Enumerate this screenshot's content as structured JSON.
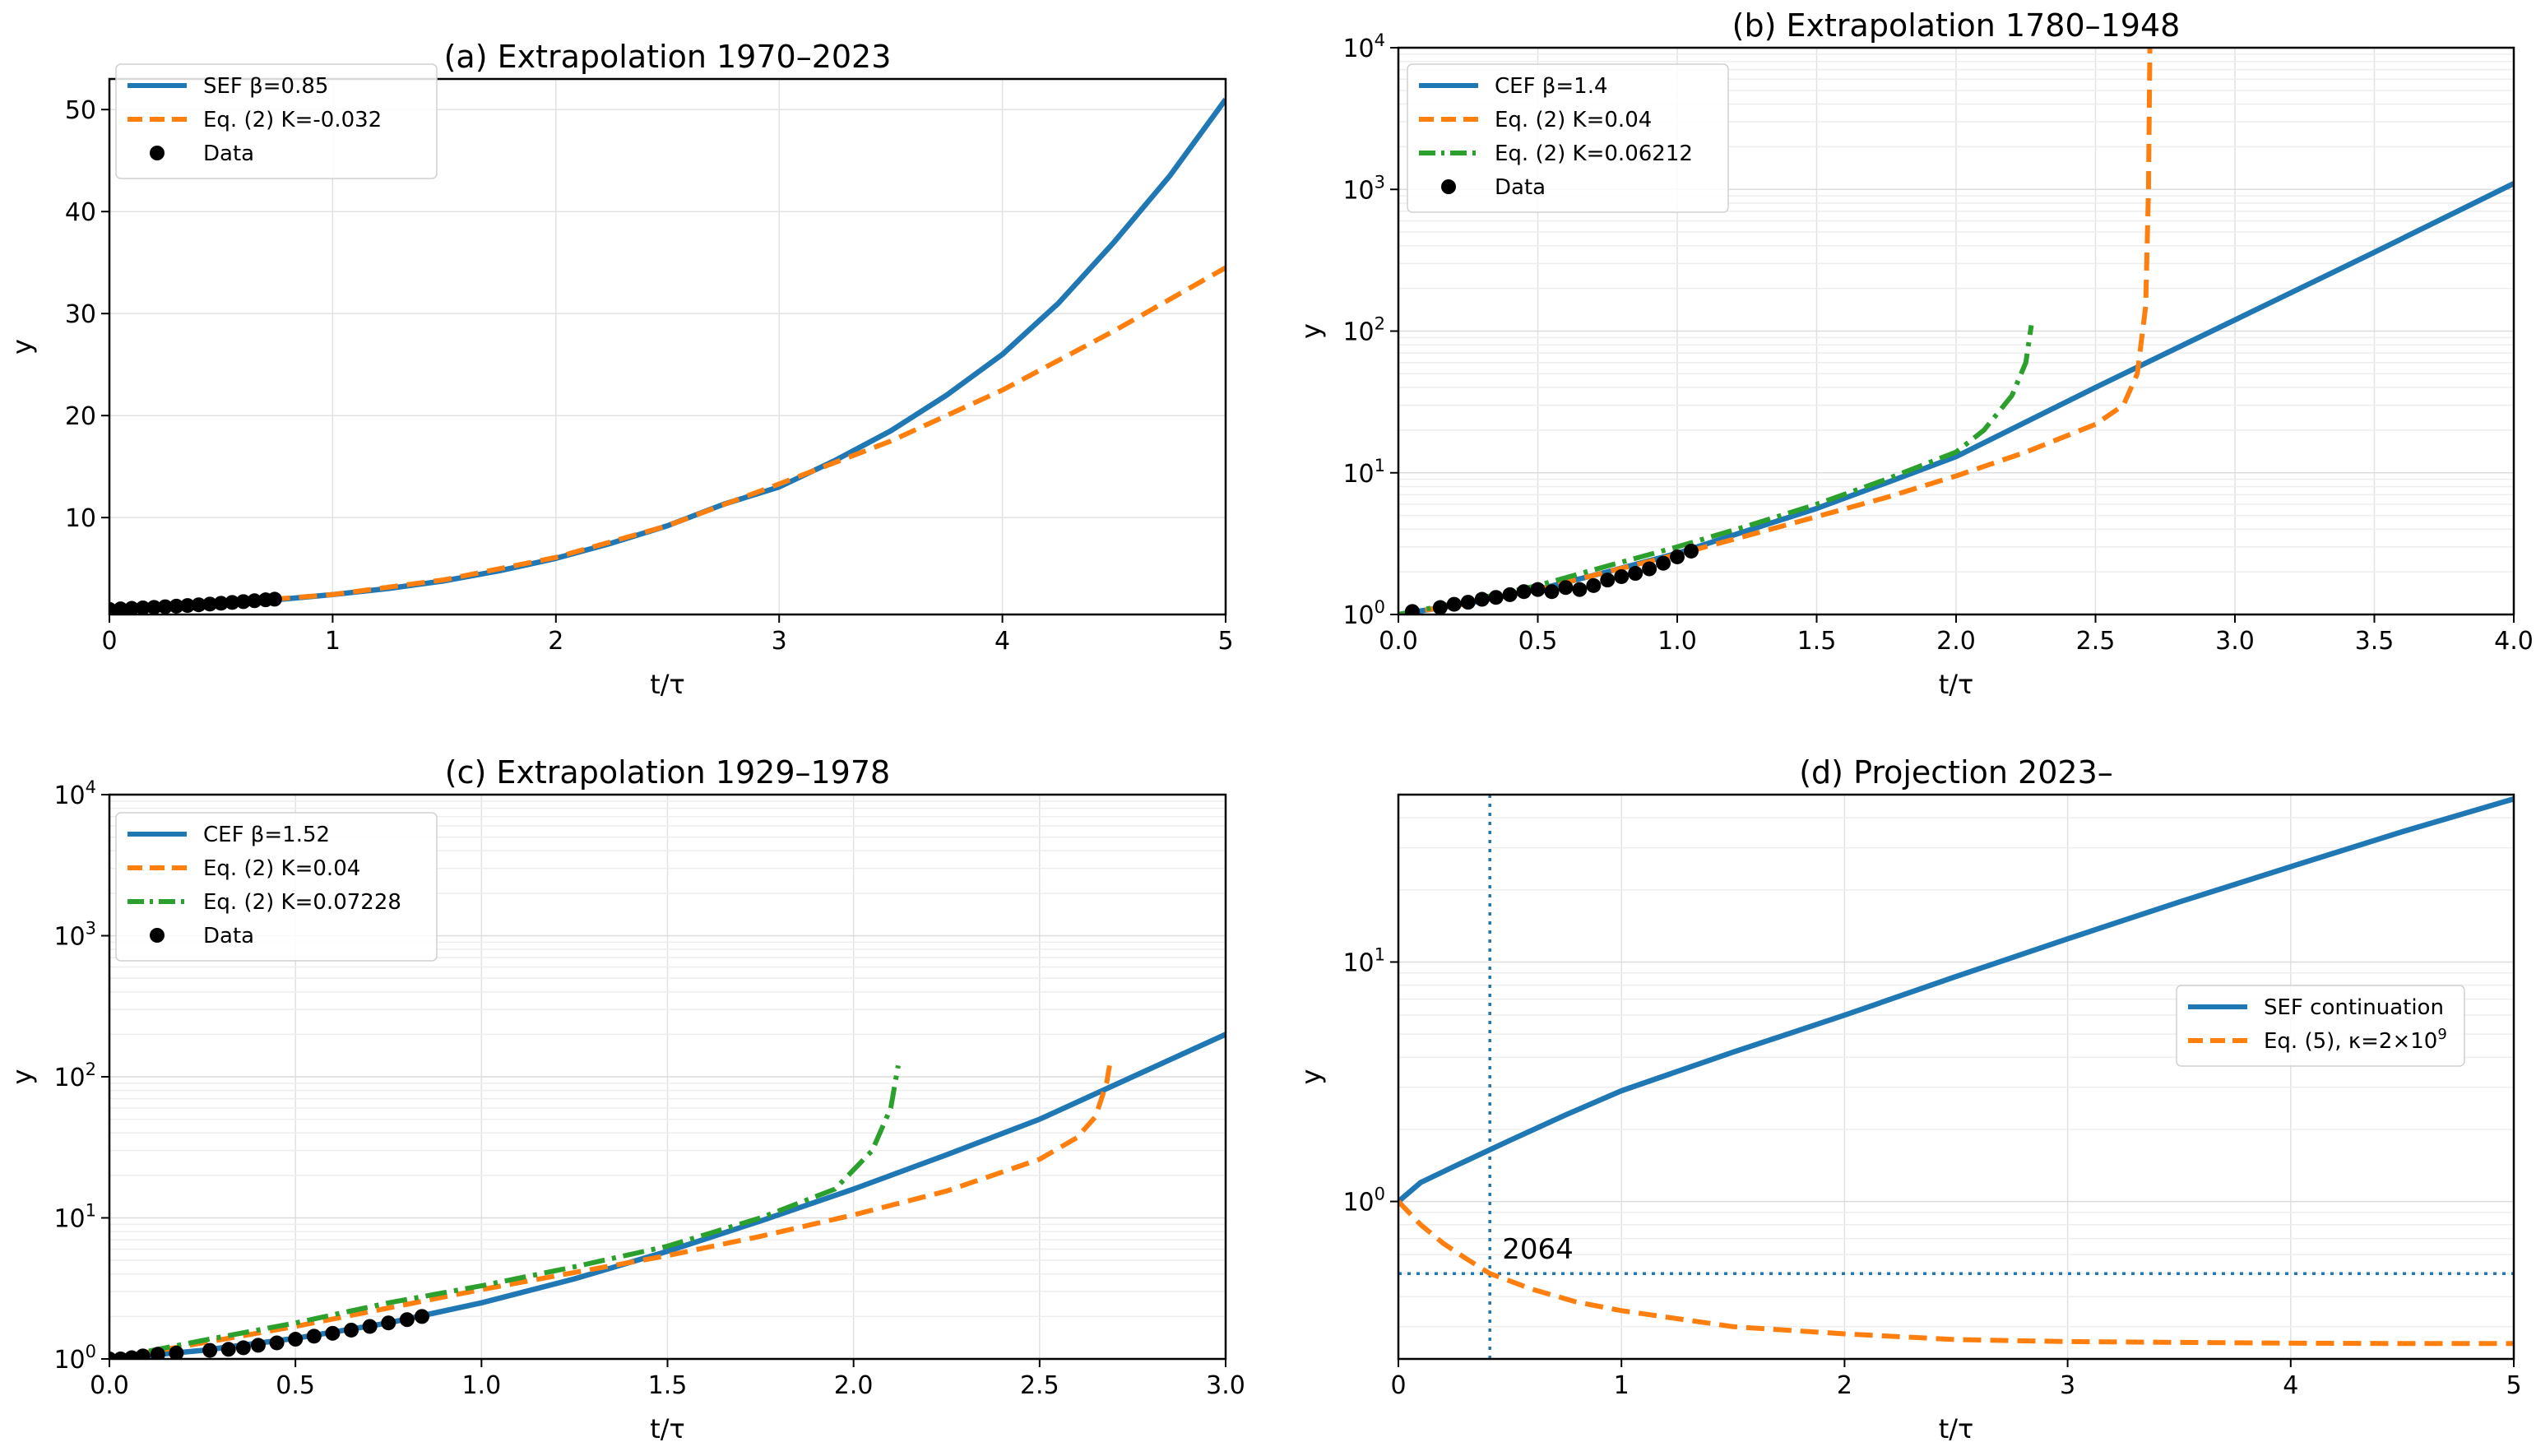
{
  "chart_data": [
    {
      "id": "a",
      "type": "line",
      "title": "(a) Extrapolation 1970–2023",
      "xlabel": "t/τ",
      "ylabel": "y",
      "yscale": "linear",
      "xlim": [
        0,
        5
      ],
      "ylim": [
        0.5,
        53
      ],
      "xticks": [
        0,
        1,
        2,
        3,
        4,
        5
      ],
      "xticklabels": [
        "0",
        "1",
        "2",
        "3",
        "4",
        "5"
      ],
      "yticks": [
        10,
        20,
        30,
        40,
        50
      ],
      "yticklabels": [
        "10",
        "20",
        "30",
        "40",
        "50"
      ],
      "grid": true,
      "legend_position": "upper-left",
      "series": [
        {
          "name": "SEF β=0.85",
          "style": "solid",
          "color": "#1f77b4",
          "x": [
            0,
            0.25,
            0.5,
            0.75,
            1,
            1.25,
            1.5,
            1.75,
            2,
            2.25,
            2.5,
            2.75,
            3,
            3.25,
            3.5,
            3.75,
            4,
            4.25,
            4.5,
            4.75,
            5
          ],
          "y": [
            1.0,
            1.25,
            1.55,
            1.95,
            2.45,
            3.05,
            3.8,
            4.8,
            6.0,
            7.5,
            9.2,
            11.3,
            13.0,
            15.6,
            18.5,
            22.0,
            26.0,
            31.0,
            37.0,
            43.5,
            51.0
          ]
        },
        {
          "name": "Eq. (2)  K=-0.032",
          "style": "dashed",
          "color": "#ff7f0e",
          "x": [
            0,
            0.5,
            1,
            1.5,
            2,
            2.5,
            3,
            3.5,
            4,
            4.5,
            5
          ],
          "y": [
            1.0,
            1.6,
            2.45,
            3.9,
            6.1,
            9.2,
            13.3,
            17.5,
            22.5,
            28.3,
            34.5
          ]
        },
        {
          "name": "Data",
          "style": "markers",
          "color": "#000000",
          "x": [
            0.0,
            0.05,
            0.1,
            0.15,
            0.2,
            0.25,
            0.3,
            0.35,
            0.4,
            0.45,
            0.5,
            0.55,
            0.6,
            0.65,
            0.7,
            0.74
          ],
          "y": [
            1.0,
            1.05,
            1.1,
            1.15,
            1.2,
            1.26,
            1.32,
            1.38,
            1.45,
            1.52,
            1.6,
            1.68,
            1.76,
            1.85,
            1.94,
            2.0
          ]
        }
      ]
    },
    {
      "id": "b",
      "type": "line",
      "title": "(b) Extrapolation 1780–1948",
      "xlabel": "t/τ",
      "ylabel": "y",
      "yscale": "log",
      "xlim": [
        0,
        4
      ],
      "ylim": [
        1,
        10000
      ],
      "xticks": [
        0,
        0.5,
        1,
        1.5,
        2,
        2.5,
        3,
        3.5,
        4
      ],
      "xticklabels": [
        "0.0",
        "0.5",
        "1.0",
        "1.5",
        "2.0",
        "2.5",
        "3.0",
        "3.5",
        "4.0"
      ],
      "yticks": [
        1,
        10,
        100,
        1000,
        10000
      ],
      "yticklabels": [
        [
          "10",
          "0"
        ],
        [
          "10",
          "1"
        ],
        [
          "10",
          "2"
        ],
        [
          "10",
          "3"
        ],
        [
          "10",
          "4"
        ]
      ],
      "grid": true,
      "legend_position": "upper-left",
      "series": [
        {
          "name": "CEF β=1.4",
          "style": "solid",
          "color": "#1f77b4",
          "x": [
            0,
            0.25,
            0.5,
            0.75,
            1,
            1.25,
            1.5,
            1.75,
            2,
            2.5,
            3,
            3.5,
            4
          ],
          "y": [
            1.0,
            1.2,
            1.5,
            2.0,
            2.7,
            3.9,
            5.6,
            8.5,
            13.0,
            40,
            120,
            360,
            1100
          ]
        },
        {
          "name": "Eq. (2) K=0.04",
          "style": "dashed",
          "color": "#ff7f0e",
          "x": [
            0,
            0.25,
            0.5,
            0.75,
            1,
            1.25,
            1.5,
            1.75,
            2,
            2.25,
            2.5,
            2.6,
            2.65,
            2.68,
            2.69,
            2.695
          ],
          "y": [
            1.0,
            1.2,
            1.5,
            2.0,
            2.65,
            3.6,
            4.9,
            6.7,
            9.5,
            14,
            22,
            30,
            50,
            150,
            1000,
            10000
          ]
        },
        {
          "name": "Eq. (2) K=0.06212",
          "style": "dashdot",
          "color": "#2ca02c",
          "x": [
            0,
            0.25,
            0.5,
            0.75,
            1,
            1.25,
            1.5,
            1.75,
            2,
            2.1,
            2.2,
            2.25,
            2.27
          ],
          "y": [
            1.0,
            1.25,
            1.6,
            2.2,
            3.0,
            4.2,
            6.0,
            9.0,
            14,
            20,
            35,
            60,
            110
          ]
        },
        {
          "name": "Data",
          "style": "markers",
          "color": "#000000",
          "x": [
            0.05,
            0.15,
            0.2,
            0.25,
            0.3,
            0.35,
            0.4,
            0.45,
            0.5,
            0.55,
            0.6,
            0.65,
            0.7,
            0.75,
            0.8,
            0.85,
            0.9,
            0.95,
            1.0,
            1.05
          ],
          "y": [
            1.05,
            1.12,
            1.18,
            1.22,
            1.28,
            1.32,
            1.38,
            1.45,
            1.5,
            1.45,
            1.55,
            1.5,
            1.6,
            1.75,
            1.85,
            1.95,
            2.1,
            2.3,
            2.55,
            2.8
          ]
        }
      ]
    },
    {
      "id": "c",
      "type": "line",
      "title": "(c) Extrapolation 1929–1978",
      "xlabel": "t/τ",
      "ylabel": "y",
      "yscale": "log",
      "xlim": [
        0,
        3
      ],
      "ylim": [
        1,
        10000
      ],
      "xticks": [
        0,
        0.5,
        1,
        1.5,
        2,
        2.5,
        3
      ],
      "xticklabels": [
        "0.0",
        "0.5",
        "1.0",
        "1.5",
        "2.0",
        "2.5",
        "3.0"
      ],
      "yticks": [
        1,
        10,
        100,
        1000,
        10000
      ],
      "yticklabels": [
        [
          "10",
          "0"
        ],
        [
          "10",
          "1"
        ],
        [
          "10",
          "2"
        ],
        [
          "10",
          "3"
        ],
        [
          "10",
          "4"
        ]
      ],
      "grid": true,
      "legend_position": "upper-left",
      "series": [
        {
          "name": "CEF β=1.52",
          "style": "solid",
          "color": "#1f77b4",
          "x": [
            0,
            0.25,
            0.5,
            0.75,
            1,
            1.25,
            1.5,
            1.75,
            2,
            2.25,
            2.5,
            2.75,
            3
          ],
          "y": [
            1.0,
            1.15,
            1.4,
            1.8,
            2.5,
            3.7,
            5.8,
            9.5,
            16,
            28,
            50,
            100,
            200
          ]
        },
        {
          "name": "Eq. (2) K=0.04",
          "style": "dashed",
          "color": "#ff7f0e",
          "x": [
            0,
            0.25,
            0.5,
            0.75,
            1,
            1.25,
            1.5,
            1.75,
            2,
            2.25,
            2.5,
            2.6,
            2.65,
            2.68,
            2.69
          ],
          "y": [
            1.0,
            1.3,
            1.7,
            2.3,
            3.1,
            4.1,
            5.4,
            7.4,
            10.5,
            15.5,
            26,
            37,
            52,
            90,
            130
          ]
        },
        {
          "name": "Eq. (2) K=0.07228",
          "style": "dashdot",
          "color": "#2ca02c",
          "x": [
            0,
            0.25,
            0.5,
            0.75,
            1,
            1.25,
            1.5,
            1.75,
            1.95,
            2.05,
            2.1,
            2.12
          ],
          "y": [
            1.0,
            1.35,
            1.8,
            2.5,
            3.3,
            4.5,
            6.3,
            10.0,
            16,
            30,
            60,
            120
          ]
        },
        {
          "name": "Data",
          "style": "markers",
          "color": "#000000",
          "x": [
            0.0,
            0.03,
            0.06,
            0.09,
            0.13,
            0.18,
            0.27,
            0.32,
            0.36,
            0.4,
            0.45,
            0.5,
            0.55,
            0.6,
            0.65,
            0.7,
            0.75,
            0.8,
            0.84
          ],
          "y": [
            1.0,
            1.0,
            1.02,
            1.05,
            1.08,
            1.1,
            1.15,
            1.17,
            1.2,
            1.25,
            1.3,
            1.38,
            1.45,
            1.52,
            1.6,
            1.7,
            1.8,
            1.9,
            2.0
          ]
        }
      ]
    },
    {
      "id": "d",
      "type": "line",
      "title": "(d) Projection 2023–",
      "xlabel": "t/τ",
      "ylabel": "y",
      "yscale": "log",
      "xlim": [
        0,
        5
      ],
      "ylim": [
        0.22,
        50
      ],
      "xticks": [
        0,
        1,
        2,
        3,
        4,
        5
      ],
      "xticklabels": [
        "0",
        "1",
        "2",
        "3",
        "4",
        "5"
      ],
      "yticks": [
        1,
        10
      ],
      "yticklabels": [
        [
          "10",
          "0"
        ],
        [
          "10",
          "1"
        ]
      ],
      "grid": true,
      "legend_position": "center-right",
      "annotation": "2064",
      "hline": 0.5,
      "vline": 0.41,
      "series": [
        {
          "name": "SEF continuation",
          "style": "solid",
          "color": "#1f77b4",
          "x": [
            0,
            0.1,
            0.25,
            0.5,
            0.75,
            1,
            1.5,
            2,
            2.5,
            3,
            3.5,
            4,
            4.5,
            5
          ],
          "y": [
            1.0,
            1.2,
            1.4,
            1.8,
            2.3,
            2.9,
            4.2,
            6.0,
            8.7,
            12.5,
            17.8,
            25,
            35,
            48
          ]
        },
        {
          "name": "Eq. (5), κ=2×10",
          "name_superscript": "9",
          "style": "dashed",
          "color": "#ff7f0e",
          "x": [
            0,
            0.1,
            0.2,
            0.3,
            0.41,
            0.6,
            0.8,
            1,
            1.5,
            2,
            2.5,
            3,
            3.5,
            4,
            4.5,
            5
          ],
          "y": [
            1.0,
            0.8,
            0.67,
            0.58,
            0.5,
            0.43,
            0.38,
            0.35,
            0.3,
            0.28,
            0.265,
            0.26,
            0.258,
            0.256,
            0.255,
            0.255
          ]
        }
      ]
    }
  ]
}
